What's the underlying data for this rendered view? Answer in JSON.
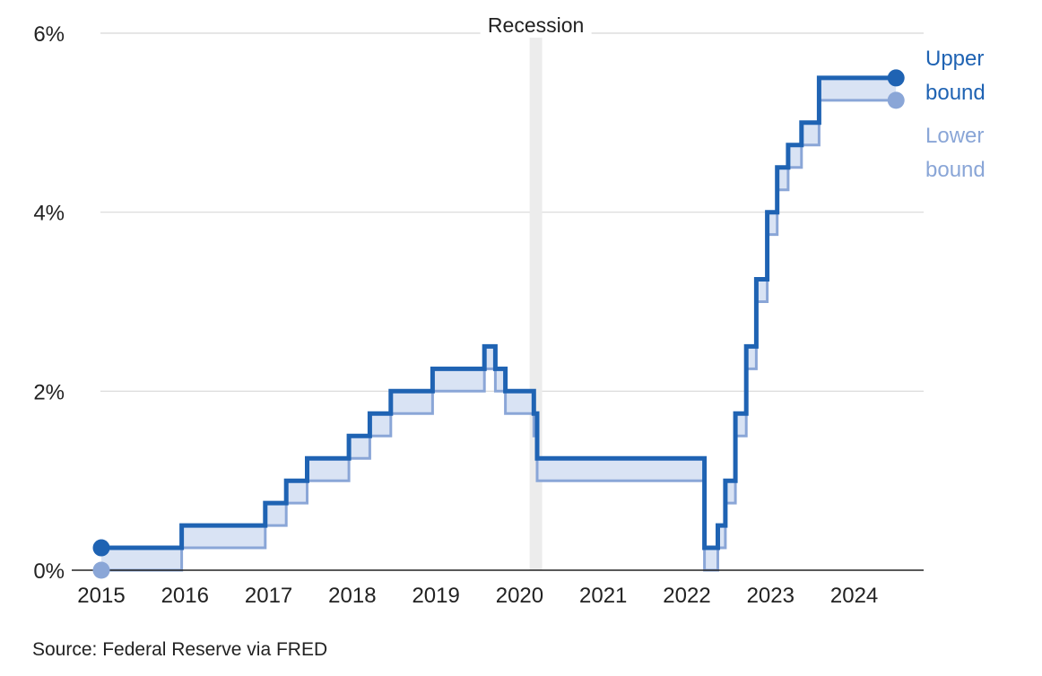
{
  "source": "Source: Federal Reserve via FRED",
  "chart_data": {
    "type": "line",
    "step": true,
    "title": "",
    "xlabel": "",
    "ylabel": "",
    "xlim": [
      2015.0,
      2024.83
    ],
    "ylim": [
      0,
      6
    ],
    "y_ticks": [
      0,
      2,
      4,
      6
    ],
    "y_tick_labels": [
      "0%",
      "2%",
      "4%",
      "6%"
    ],
    "x_ticks": [
      2015,
      2016,
      2017,
      2018,
      2019,
      2020,
      2021,
      2022,
      2023,
      2024
    ],
    "x_tick_labels": [
      "2015",
      "2016",
      "2017",
      "2018",
      "2019",
      "2020",
      "2021",
      "2022",
      "2023",
      "2024"
    ],
    "grid": "horizontal",
    "legend": "right",
    "recession": {
      "label": "Recession",
      "start": 2020.12,
      "end": 2020.27
    },
    "end_x": 2024.5,
    "colors": {
      "upper": "#1f63b3",
      "lower": "#8aa6d7",
      "fill": "#d9e3f4",
      "recession": "#ececec",
      "grid": "#d8d8d8"
    },
    "series": [
      {
        "name": "Upper bound",
        "legend_lines": [
          "Upper",
          "bound"
        ],
        "x": [
          2015.0,
          2015.96,
          2016.96,
          2017.21,
          2017.46,
          2017.96,
          2018.21,
          2018.46,
          2018.96,
          2019.58,
          2019.71,
          2019.83,
          2020.17,
          2020.21,
          2022.21,
          2022.37,
          2022.46,
          2022.58,
          2022.71,
          2022.83,
          2022.96,
          2023.08,
          2023.21,
          2023.37,
          2023.58
        ],
        "values": [
          0.25,
          0.5,
          0.75,
          1.0,
          1.25,
          1.5,
          1.75,
          2.0,
          2.25,
          2.5,
          2.25,
          2.0,
          1.75,
          1.25,
          0.25,
          0.5,
          1.0,
          1.75,
          2.5,
          3.25,
          4.0,
          4.5,
          4.75,
          5.0,
          5.5
        ]
      },
      {
        "name": "Lower bound",
        "legend_lines": [
          "Lower",
          "bound"
        ],
        "x": [
          2015.0,
          2015.96,
          2016.96,
          2017.21,
          2017.46,
          2017.96,
          2018.21,
          2018.46,
          2018.96,
          2019.58,
          2019.71,
          2019.83,
          2020.17,
          2020.21,
          2022.21,
          2022.37,
          2022.46,
          2022.58,
          2022.71,
          2022.83,
          2022.96,
          2023.08,
          2023.21,
          2023.37,
          2023.58
        ],
        "values": [
          0.0,
          0.25,
          0.5,
          0.75,
          1.0,
          1.25,
          1.5,
          1.75,
          2.0,
          2.25,
          2.0,
          1.75,
          1.5,
          1.0,
          0.0,
          0.25,
          0.75,
          1.5,
          2.25,
          3.0,
          3.75,
          4.25,
          4.5,
          4.75,
          5.25
        ]
      }
    ]
  }
}
